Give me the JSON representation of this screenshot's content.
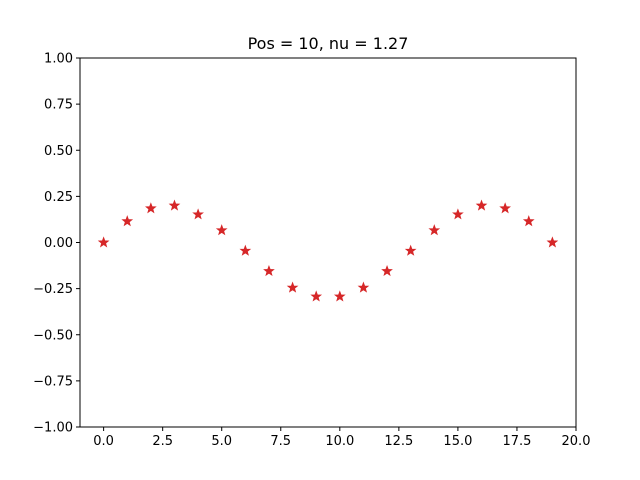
{
  "chart_data": {
    "type": "scatter",
    "title": "Pos = 10, nu = 1.27",
    "xlabel": "",
    "ylabel": "",
    "xlim": [
      -1,
      20
    ],
    "ylim": [
      -1,
      1
    ],
    "xticks": [
      0.0,
      2.5,
      5.0,
      7.5,
      10.0,
      12.5,
      15.0,
      17.5,
      20.0
    ],
    "xtick_labels": [
      "0.0",
      "2.5",
      "5.0",
      "7.5",
      "10.0",
      "12.5",
      "15.0",
      "17.5",
      "20.0"
    ],
    "yticks": [
      -1.0,
      -0.75,
      -0.5,
      -0.25,
      0.0,
      0.25,
      0.5,
      0.75,
      1.0
    ],
    "ytick_labels": [
      "−1.00",
      "−0.75",
      "−0.50",
      "−0.25",
      "0.00",
      "0.25",
      "0.50",
      "0.75",
      "1.00"
    ],
    "grid": false,
    "marker": "star",
    "marker_color": "#d62728",
    "series": [
      {
        "x": [
          0,
          1,
          2,
          3,
          4,
          5,
          6,
          7,
          8,
          9,
          10,
          11,
          12,
          13,
          14,
          15,
          16,
          17,
          18,
          19
        ],
        "y": [
          0.0,
          0.115,
          0.185,
          0.2,
          0.152,
          0.066,
          -0.045,
          -0.155,
          -0.245,
          -0.293,
          -0.293,
          -0.245,
          -0.155,
          -0.045,
          0.066,
          0.152,
          0.2,
          0.185,
          0.115,
          0.0
        ]
      }
    ]
  }
}
